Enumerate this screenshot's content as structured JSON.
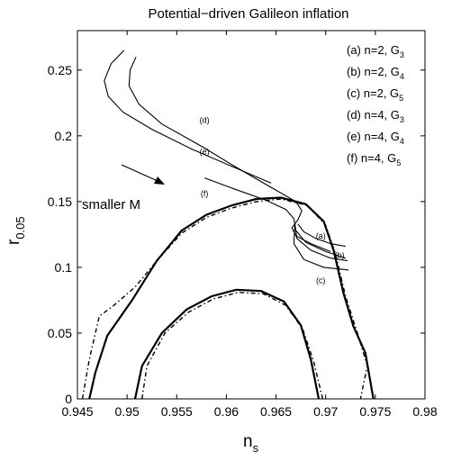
{
  "chart_data": {
    "type": "line",
    "title": "Potential−driven Galileon inflation",
    "xlabel": "n",
    "xlabel_sub": "s",
    "ylabel": "r",
    "ylabel_sub": "0.05",
    "xlim": [
      0.945,
      0.98
    ],
    "ylim": [
      0,
      0.28
    ],
    "xticks": [
      0.945,
      0.95,
      0.955,
      0.96,
      0.965,
      0.97,
      0.975,
      0.98
    ],
    "xtick_labels": [
      "0.945",
      "0.95",
      "0.955",
      "0.96",
      "0.965",
      "0.97",
      "0.975",
      "0.98"
    ],
    "yticks": [
      0,
      0.05,
      0.1,
      0.15,
      0.2,
      0.25
    ],
    "ytick_labels": [
      "0",
      "0.05",
      "0.1",
      "0.15",
      "0.2",
      "0.25"
    ],
    "legend": {
      "placement": "top-right",
      "entries": [
        {
          "text": "(a) n=2, G",
          "sub": "3"
        },
        {
          "text": "(b) n=2, G",
          "sub": "4"
        },
        {
          "text": "(c) n=2, G",
          "sub": "5"
        },
        {
          "text": "(d) n=4, G",
          "sub": "3"
        },
        {
          "text": "(e) n=4, G",
          "sub": "4"
        },
        {
          "text": "(f) n=4, G",
          "sub": "5"
        }
      ]
    },
    "annotation": "smaller M",
    "series": [
      {
        "label": "(d)",
        "label_at": [
          0.9578,
          0.21
        ],
        "points": [
          [
            0.9497,
            0.265
          ],
          [
            0.9484,
            0.255
          ],
          [
            0.9477,
            0.242
          ],
          [
            0.9481,
            0.23
          ],
          [
            0.9496,
            0.218
          ],
          [
            0.9525,
            0.205
          ],
          [
            0.9565,
            0.19
          ],
          [
            0.9605,
            0.177
          ],
          [
            0.9645,
            0.164
          ]
        ]
      },
      {
        "label": "(e)",
        "label_at": [
          0.9578,
          0.186
        ],
        "points": [
          [
            0.9509,
            0.26
          ],
          [
            0.9503,
            0.25
          ],
          [
            0.9502,
            0.238
          ],
          [
            0.9512,
            0.224
          ],
          [
            0.9535,
            0.209
          ],
          [
            0.9575,
            0.192
          ],
          [
            0.961,
            0.176
          ],
          [
            0.964,
            0.163
          ],
          [
            0.967,
            0.15
          ],
          [
            0.9676,
            0.143
          ],
          [
            0.9672,
            0.136
          ],
          [
            0.9666,
            0.13
          ],
          [
            0.967,
            0.124
          ],
          [
            0.9685,
            0.118
          ],
          [
            0.9705,
            0.112
          ]
        ]
      },
      {
        "label": "(f)",
        "label_at": [
          0.9578,
          0.154
        ],
        "points": [
          [
            0.9578,
            0.168
          ],
          [
            0.961,
            0.159
          ],
          [
            0.964,
            0.151
          ],
          [
            0.966,
            0.144
          ],
          [
            0.9668,
            0.137
          ],
          [
            0.967,
            0.128
          ],
          [
            0.968,
            0.119
          ],
          [
            0.97,
            0.112
          ],
          [
            0.972,
            0.107
          ]
        ]
      },
      {
        "label": "(a)",
        "label_at": [
          0.9695,
          0.122
        ],
        "points": [
          [
            0.9672,
            0.133
          ],
          [
            0.9678,
            0.127
          ],
          [
            0.969,
            0.122
          ],
          [
            0.9705,
            0.118
          ],
          [
            0.972,
            0.116
          ]
        ]
      },
      {
        "label": "(b)",
        "label_at": [
          0.9714,
          0.107
        ],
        "points": [
          [
            0.9669,
            0.133
          ],
          [
            0.9671,
            0.122
          ],
          [
            0.9685,
            0.113
          ],
          [
            0.9705,
            0.107
          ],
          [
            0.9722,
            0.105
          ]
        ]
      },
      {
        "label": "(c)",
        "label_at": [
          0.9695,
          0.088
        ],
        "points": [
          [
            0.9669,
            0.133
          ],
          [
            0.9668,
            0.118
          ],
          [
            0.9678,
            0.106
          ],
          [
            0.9698,
            0.1
          ],
          [
            0.9723,
            0.098
          ]
        ]
      }
    ],
    "contours": [
      {
        "style": "solid",
        "points": [
          [
            0.9462,
            0.0
          ],
          [
            0.9468,
            0.02
          ],
          [
            0.948,
            0.048
          ],
          [
            0.9505,
            0.075
          ],
          [
            0.953,
            0.105
          ],
          [
            0.9555,
            0.128
          ],
          [
            0.958,
            0.14
          ],
          [
            0.9605,
            0.147
          ],
          [
            0.963,
            0.152
          ],
          [
            0.9655,
            0.153
          ],
          [
            0.968,
            0.148
          ],
          [
            0.9698,
            0.135
          ],
          [
            0.9708,
            0.113
          ],
          [
            0.9718,
            0.08
          ],
          [
            0.9728,
            0.055
          ],
          [
            0.974,
            0.035
          ],
          [
            0.9748,
            0.0
          ]
        ]
      },
      {
        "style": "dashed",
        "points": [
          [
            0.9455,
            0.0
          ],
          [
            0.9462,
            0.03
          ],
          [
            0.9472,
            0.063
          ],
          [
            0.9485,
            0.07
          ],
          [
            0.9508,
            0.085
          ],
          [
            0.953,
            0.105
          ],
          [
            0.9555,
            0.126
          ],
          [
            0.958,
            0.138
          ],
          [
            0.9605,
            0.145
          ],
          [
            0.963,
            0.15
          ],
          [
            0.9655,
            0.152
          ],
          [
            0.9682,
            0.147
          ],
          [
            0.97,
            0.132
          ],
          [
            0.971,
            0.11
          ],
          [
            0.972,
            0.078
          ],
          [
            0.9732,
            0.05
          ],
          [
            0.9742,
            0.025
          ],
          [
            0.9735,
            0.0
          ]
        ]
      },
      {
        "style": "solid",
        "points": [
          [
            0.9508,
            0.0
          ],
          [
            0.9515,
            0.025
          ],
          [
            0.9535,
            0.05
          ],
          [
            0.956,
            0.068
          ],
          [
            0.9585,
            0.078
          ],
          [
            0.961,
            0.083
          ],
          [
            0.9635,
            0.082
          ],
          [
            0.9658,
            0.074
          ],
          [
            0.9675,
            0.056
          ],
          [
            0.9685,
            0.03
          ],
          [
            0.9693,
            0.0
          ]
        ]
      },
      {
        "style": "dashed",
        "points": [
          [
            0.9515,
            0.0
          ],
          [
            0.952,
            0.025
          ],
          [
            0.9538,
            0.05
          ],
          [
            0.9562,
            0.066
          ],
          [
            0.9587,
            0.076
          ],
          [
            0.9612,
            0.081
          ],
          [
            0.9637,
            0.08
          ],
          [
            0.966,
            0.071
          ],
          [
            0.9677,
            0.053
          ],
          [
            0.9688,
            0.028
          ],
          [
            0.9697,
            0.0
          ]
        ]
      }
    ]
  }
}
